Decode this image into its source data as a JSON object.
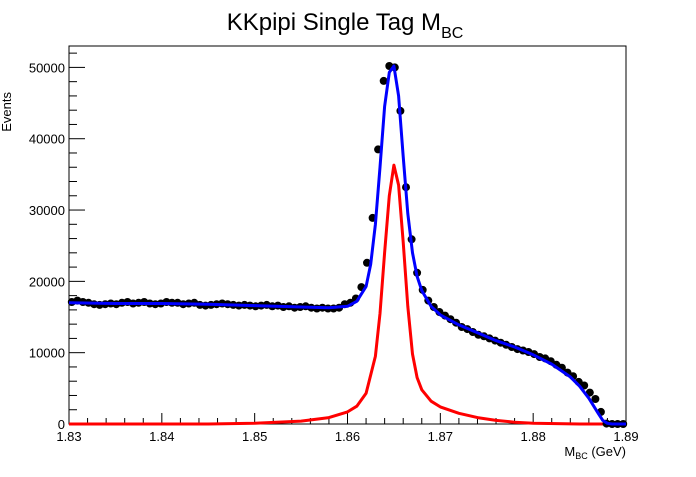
{
  "chart_data": {
    "type": "line",
    "title": "KKpipi Single Tag M",
    "title_sub": "BC",
    "xlabel": "M",
    "xlabel_sub": "BC",
    "xlabel_unit": " (GeV)",
    "ylabel": "Events",
    "xlim": [
      1.83,
      1.89
    ],
    "ylim": [
      0,
      53000
    ],
    "x_ticks": [
      1.83,
      1.84,
      1.85,
      1.86,
      1.87,
      1.88,
      1.89
    ],
    "x_tick_labels": [
      "1.83",
      "1.84",
      "1.85",
      "1.86",
      "1.87",
      "1.88",
      "1.89"
    ],
    "y_ticks": [
      0,
      10000,
      20000,
      30000,
      40000,
      50000
    ],
    "y_tick_labels": [
      "0",
      "10000",
      "20000",
      "30000",
      "40000",
      "50000"
    ],
    "grid": false,
    "legend": "none",
    "series": [
      {
        "kind": "points",
        "color": "#000000",
        "x": [
          1.8303,
          1.8309,
          1.8315,
          1.8321,
          1.8327,
          1.8333,
          1.8339,
          1.8345,
          1.8351,
          1.8357,
          1.8363,
          1.8369,
          1.8375,
          1.8381,
          1.8387,
          1.8393,
          1.8399,
          1.8405,
          1.8411,
          1.8417,
          1.8423,
          1.8429,
          1.8435,
          1.8441,
          1.8447,
          1.8453,
          1.8459,
          1.8465,
          1.8471,
          1.8477,
          1.8483,
          1.8489,
          1.8495,
          1.8501,
          1.8507,
          1.8513,
          1.8519,
          1.8525,
          1.8531,
          1.8537,
          1.8543,
          1.8549,
          1.8555,
          1.8561,
          1.8567,
          1.8573,
          1.8579,
          1.8585,
          1.8591,
          1.8597,
          1.8603,
          1.8609,
          1.8615,
          1.8621,
          1.8627,
          1.8633,
          1.8639,
          1.8645,
          1.8651,
          1.8657,
          1.8663,
          1.8669,
          1.8675,
          1.8681,
          1.8687,
          1.8693,
          1.8699,
          1.8705,
          1.8711,
          1.8717,
          1.8723,
          1.8729,
          1.8735,
          1.8741,
          1.8747,
          1.8753,
          1.8759,
          1.8765,
          1.8771,
          1.8777,
          1.8783,
          1.8789,
          1.8795,
          1.8801,
          1.8807,
          1.8813,
          1.8819,
          1.8825,
          1.8831,
          1.8837,
          1.8843,
          1.8849,
          1.8855,
          1.8861,
          1.8867,
          1.8873,
          1.8879,
          1.8885,
          1.8891,
          1.8897
        ],
        "y": [
          17100,
          17300,
          17100,
          17000,
          16800,
          16700,
          16800,
          16900,
          16800,
          17000,
          17100,
          16900,
          17000,
          17100,
          16900,
          16800,
          16900,
          17100,
          17000,
          17000,
          16800,
          16900,
          17000,
          16700,
          16600,
          16700,
          16800,
          16900,
          16800,
          16700,
          16600,
          16700,
          16600,
          16500,
          16600,
          16700,
          16500,
          16600,
          16400,
          16500,
          16300,
          16400,
          16500,
          16300,
          16200,
          16300,
          16200,
          16200,
          16300,
          16800,
          17000,
          17600,
          19200,
          22600,
          28900,
          38500,
          48100,
          50200,
          50000,
          43900,
          33200,
          25900,
          21200,
          18800,
          17300,
          16400,
          15700,
          15200,
          14700,
          14200,
          13600,
          13300,
          12900,
          12500,
          12300,
          12000,
          11700,
          11400,
          11100,
          10800,
          10500,
          10300,
          10100,
          9800,
          9400,
          9200,
          8800,
          8300,
          7900,
          7200,
          6700,
          5900,
          5400,
          4400,
          3500,
          1700,
          50,
          0,
          0,
          0
        ]
      },
      {
        "kind": "line",
        "color": "#0000ff",
        "x": [
          1.83,
          1.835,
          1.84,
          1.845,
          1.85,
          1.855,
          1.858,
          1.86,
          1.861,
          1.862,
          1.8625,
          1.863,
          1.8635,
          1.864,
          1.8645,
          1.865,
          1.8655,
          1.866,
          1.8665,
          1.867,
          1.8675,
          1.868,
          1.869,
          1.87,
          1.871,
          1.872,
          1.874,
          1.876,
          1.878,
          1.88,
          1.882,
          1.884,
          1.885,
          1.886,
          1.887,
          1.8875,
          1.888,
          1.8885,
          1.889,
          1.89
        ],
        "y": [
          17000,
          16900,
          16900,
          16800,
          16600,
          16400,
          16300,
          16500,
          17200,
          19300,
          22400,
          28000,
          36000,
          44500,
          49300,
          50200,
          46000,
          37500,
          29500,
          24000,
          20700,
          18700,
          16500,
          15300,
          14600,
          13900,
          12800,
          11700,
          10800,
          9700,
          8400,
          6600,
          5300,
          3600,
          1500,
          500,
          100,
          0,
          0,
          0
        ]
      },
      {
        "kind": "line",
        "color": "#ff0000",
        "x": [
          1.83,
          1.84,
          1.845,
          1.85,
          1.855,
          1.858,
          1.86,
          1.861,
          1.862,
          1.863,
          1.8635,
          1.864,
          1.8645,
          1.865,
          1.8655,
          1.866,
          1.8665,
          1.867,
          1.8675,
          1.868,
          1.869,
          1.87,
          1.872,
          1.874,
          1.876,
          1.878,
          1.88,
          1.885,
          1.89
        ],
        "y": [
          0,
          0,
          0,
          100,
          400,
          900,
          1700,
          2500,
          4300,
          9500,
          15500,
          24000,
          32000,
          36300,
          33500,
          25500,
          16500,
          9800,
          6500,
          4800,
          3200,
          2400,
          1500,
          900,
          500,
          250,
          100,
          0,
          0
        ]
      }
    ]
  }
}
